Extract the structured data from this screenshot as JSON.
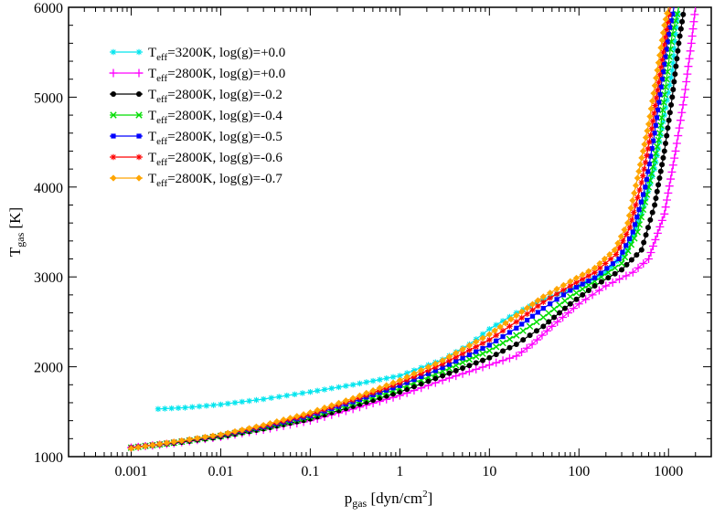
{
  "chart_data": {
    "type": "line",
    "xlabel_main": "p",
    "xlabel_sub": "gas",
    "xlabel_rest": " [dyn/cm",
    "xlabel_sup": "2",
    "xlabel_end": "]",
    "ylabel_main": "T",
    "ylabel_sub": "gas",
    "ylabel_rest": " [K]",
    "xscale": "log",
    "xlim": [
      0.0002,
      3000
    ],
    "ylim": [
      1000,
      6000
    ],
    "xticks": [
      0.001,
      0.01,
      0.1,
      1,
      10,
      100,
      1000
    ],
    "xtick_labels": [
      "0.001",
      "0.01",
      "0.1",
      "1",
      "10",
      "100",
      "1000"
    ],
    "yticks": [
      1000,
      2000,
      3000,
      4000,
      5000,
      6000
    ],
    "ytick_labels": [
      "1000",
      "2000",
      "3000",
      "4000",
      "5000",
      "6000"
    ],
    "grid": false,
    "legend_position": "top-left",
    "series": [
      {
        "name": "Teff=3200K, log(g)=+0.0",
        "teff": "3200K",
        "logg": "+0.0",
        "color": "#00e5ee",
        "marker": "star",
        "x": [
          0.002,
          0.004,
          0.01,
          0.03,
          0.1,
          0.3,
          1,
          3,
          6,
          10,
          20,
          40,
          100,
          200,
          350,
          500,
          700,
          900,
          1100,
          1200,
          1300
        ],
        "y": [
          1530,
          1545,
          1580,
          1640,
          1720,
          1800,
          1900,
          2080,
          2250,
          2420,
          2600,
          2750,
          2900,
          3050,
          3300,
          3700,
          4200,
          4800,
          5300,
          5700,
          6000
        ]
      },
      {
        "name": "Teff=2800K, log(g)=+0.0",
        "teff": "2800K",
        "logg": "+0.0",
        "color": "#ff00ff",
        "marker": "plus",
        "x": [
          0.001,
          0.003,
          0.01,
          0.03,
          0.1,
          0.3,
          1,
          3,
          10,
          20,
          30,
          50,
          100,
          200,
          400,
          600,
          900,
          1200,
          1500,
          1800,
          2000
        ],
        "y": [
          1100,
          1150,
          1220,
          1300,
          1400,
          1530,
          1680,
          1850,
          2020,
          2120,
          2250,
          2450,
          2700,
          2900,
          3050,
          3200,
          3700,
          4400,
          5000,
          5600,
          6000
        ]
      },
      {
        "name": "Teff=2800K, log(g)=-0.2",
        "teff": "2800K",
        "logg": "-0.2",
        "color": "#000000",
        "marker": "circle",
        "x": [
          0.001,
          0.003,
          0.01,
          0.03,
          0.1,
          0.3,
          1,
          3,
          10,
          20,
          40,
          80,
          150,
          300,
          500,
          700,
          900,
          1100,
          1300,
          1500
        ],
        "y": [
          1100,
          1150,
          1220,
          1310,
          1420,
          1560,
          1720,
          1900,
          2100,
          2250,
          2450,
          2700,
          2900,
          3080,
          3300,
          3800,
          4400,
          5000,
          5600,
          6000
        ]
      },
      {
        "name": "Teff=2800K, log(g)=-0.4",
        "teff": "2800K",
        "logg": "-0.4",
        "color": "#00dd00",
        "marker": "cross",
        "x": [
          0.001,
          0.003,
          0.01,
          0.03,
          0.1,
          0.3,
          1,
          3,
          10,
          20,
          40,
          80,
          150,
          300,
          450,
          600,
          800,
          950,
          1100,
          1300
        ],
        "y": [
          1100,
          1155,
          1230,
          1320,
          1440,
          1590,
          1760,
          1950,
          2180,
          2350,
          2550,
          2780,
          2950,
          3150,
          3500,
          4000,
          4600,
          5200,
          5700,
          6000
        ]
      },
      {
        "name": "Teff=2800K, log(g)=-0.5",
        "teff": "2800K",
        "logg": "-0.5",
        "color": "#0000ff",
        "marker": "square",
        "x": [
          0.001,
          0.003,
          0.01,
          0.03,
          0.1,
          0.3,
          1,
          3,
          10,
          20,
          40,
          80,
          150,
          280,
          400,
          550,
          700,
          850,
          1000,
          1150
        ],
        "y": [
          1100,
          1160,
          1235,
          1330,
          1455,
          1610,
          1790,
          1990,
          2240,
          2430,
          2650,
          2850,
          2990,
          3200,
          3500,
          4000,
          4600,
          5200,
          5700,
          6000
        ]
      },
      {
        "name": "Teff=2800K, log(g)=-0.6",
        "teff": "2800K",
        "logg": "-0.6",
        "color": "#ff0000",
        "marker": "star",
        "x": [
          0.001,
          0.003,
          0.01,
          0.03,
          0.1,
          0.3,
          1,
          3,
          10,
          20,
          40,
          80,
          150,
          260,
          370,
          500,
          650,
          800,
          950,
          1050
        ],
        "y": [
          1100,
          1162,
          1240,
          1340,
          1470,
          1630,
          1820,
          2030,
          2300,
          2500,
          2720,
          2900,
          3050,
          3250,
          3550,
          4050,
          4650,
          5250,
          5750,
          6000
        ]
      },
      {
        "name": "Teff=2800K, log(g)=-0.7",
        "teff": "2800K",
        "logg": "-0.7",
        "color": "#ffa500",
        "marker": "diamond",
        "x": [
          0.001,
          0.003,
          0.01,
          0.03,
          0.1,
          0.3,
          1,
          3,
          10,
          20,
          40,
          80,
          150,
          250,
          350,
          450,
          600,
          750,
          900,
          1000
        ],
        "y": [
          1090,
          1165,
          1245,
          1350,
          1490,
          1650,
          1850,
          2070,
          2360,
          2570,
          2780,
          2950,
          3100,
          3300,
          3600,
          4100,
          4700,
          5300,
          5800,
          6000
        ]
      }
    ]
  }
}
